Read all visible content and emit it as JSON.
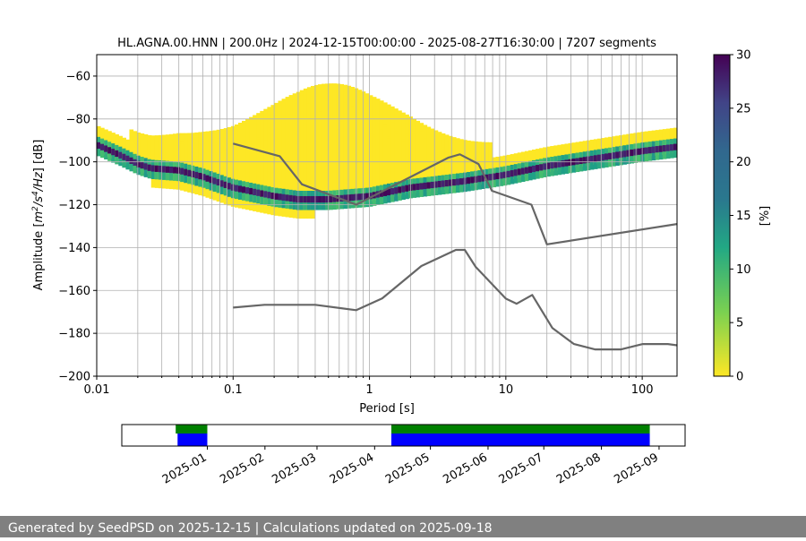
{
  "title": "HL.AGNA.00.HNN | 200.0Hz | 2024-12-15T00:00:00 - 2025-08-27T16:30:00 | 7207 segments",
  "footer": "Generated by SeedPSD on 2025-12-15 | Calculations updated on 2025-09-18",
  "colors": {
    "nlnm_nhnm": "#666666",
    "data_green": "#008000",
    "data_blue": "#0000ff",
    "grid": "#b0b0b0"
  },
  "chart_data": [
    {
      "type": "heatmap",
      "title": "HL.AGNA.00.HNN | 200.0Hz | 2024-12-15T00:00:00 - 2025-08-27T16:30:00 | 7207 segments",
      "xlabel": "Period [s]",
      "ylabel_parts": [
        "Amplitude [",
        "m",
        "2",
        "/s",
        "4",
        "/Hz",
        "] [dB]"
      ],
      "xscale": "log",
      "xlim": [
        0.01,
        180
      ],
      "ylim": [
        -200,
        -50
      ],
      "xticks": [
        0.01,
        0.1,
        1,
        10,
        100
      ],
      "xtick_labels": [
        "0.01",
        "0.1",
        "1",
        "10",
        "100"
      ],
      "yticks": [
        -200,
        -180,
        -160,
        -140,
        -120,
        -100,
        -80,
        -60
      ],
      "ytick_labels": [
        "−200",
        "−180",
        "−160",
        "−140",
        "−120",
        "−100",
        "−80",
        "−60"
      ],
      "grid": true,
      "colorbar": {
        "label": "[%]",
        "range": [
          0,
          30
        ],
        "ticks": [
          0,
          5,
          10,
          15,
          20,
          25,
          30
        ],
        "tick_labels": [
          "0",
          "5",
          "10",
          "15",
          "20",
          "25",
          "30"
        ],
        "colormap": "viridis_r"
      },
      "series": [
        {
          "name": "NHNM",
          "points": [
            [
              0.1,
              -91.5
            ],
            [
              0.22,
              -97.4
            ],
            [
              0.32,
              -110.5
            ],
            [
              0.8,
              -120
            ],
            [
              3.8,
              -98
            ],
            [
              4.6,
              -96.5
            ],
            [
              6.3,
              -101
            ],
            [
              7.9,
              -113.5
            ],
            [
              15.4,
              -120
            ],
            [
              20,
              -138.5
            ],
            [
              180,
              -129
            ]
          ]
        },
        {
          "name": "NLNM",
          "points": [
            [
              0.1,
              -168
            ],
            [
              0.17,
              -166.7
            ],
            [
              0.4,
              -166.7
            ],
            [
              0.8,
              -169.2
            ],
            [
              1.24,
              -163.7
            ],
            [
              2.4,
              -148.6
            ],
            [
              4.3,
              -141.1
            ],
            [
              5.0,
              -141.1
            ],
            [
              6.0,
              -149
            ],
            [
              10,
              -163.8
            ],
            [
              12,
              -166.2
            ],
            [
              15.6,
              -162.1
            ],
            [
              21.9,
              -177.5
            ],
            [
              31.6,
              -185
            ],
            [
              45,
              -187.5
            ],
            [
              70,
              -187.5
            ],
            [
              101,
              -185
            ],
            [
              154,
              -185
            ],
            [
              180,
              -185.6
            ]
          ]
        },
        {
          "name": "mode",
          "points": [
            [
              0.01,
              -92
            ],
            [
              0.015,
              -97
            ],
            [
              0.02,
              -101
            ],
            [
              0.025,
              -103
            ],
            [
              0.04,
              -104
            ],
            [
              0.06,
              -107
            ],
            [
              0.1,
              -112
            ],
            [
              0.2,
              -116
            ],
            [
              0.3,
              -117.5
            ],
            [
              0.5,
              -117.5
            ],
            [
              1,
              -116
            ],
            [
              2,
              -112
            ],
            [
              5,
              -109
            ],
            [
              10,
              -106
            ],
            [
              20,
              -102
            ],
            [
              50,
              -98
            ],
            [
              100,
              -95
            ],
            [
              180,
              -93
            ]
          ]
        }
      ]
    },
    {
      "type": "bar",
      "title": "",
      "xlabel": "",
      "x_dates": [
        "2025-01",
        "2025-02",
        "2025-03",
        "2025-04",
        "2025-05",
        "2025-06",
        "2025-07",
        "2025-08",
        "2025-09"
      ],
      "xlim_dates": [
        "2024-11-16",
        "2025-09-15"
      ],
      "series": [
        {
          "name": "available",
          "color": "#008000",
          "ranges": [
            [
              "2024-12-15",
              "2025-01-01"
            ],
            [
              "2025-04-10",
              "2025-08-27"
            ]
          ]
        },
        {
          "name": "processed",
          "color": "#0000ff",
          "ranges": [
            [
              "2024-12-16",
              "2025-01-01"
            ],
            [
              "2025-04-10",
              "2025-08-27"
            ]
          ]
        }
      ]
    }
  ]
}
